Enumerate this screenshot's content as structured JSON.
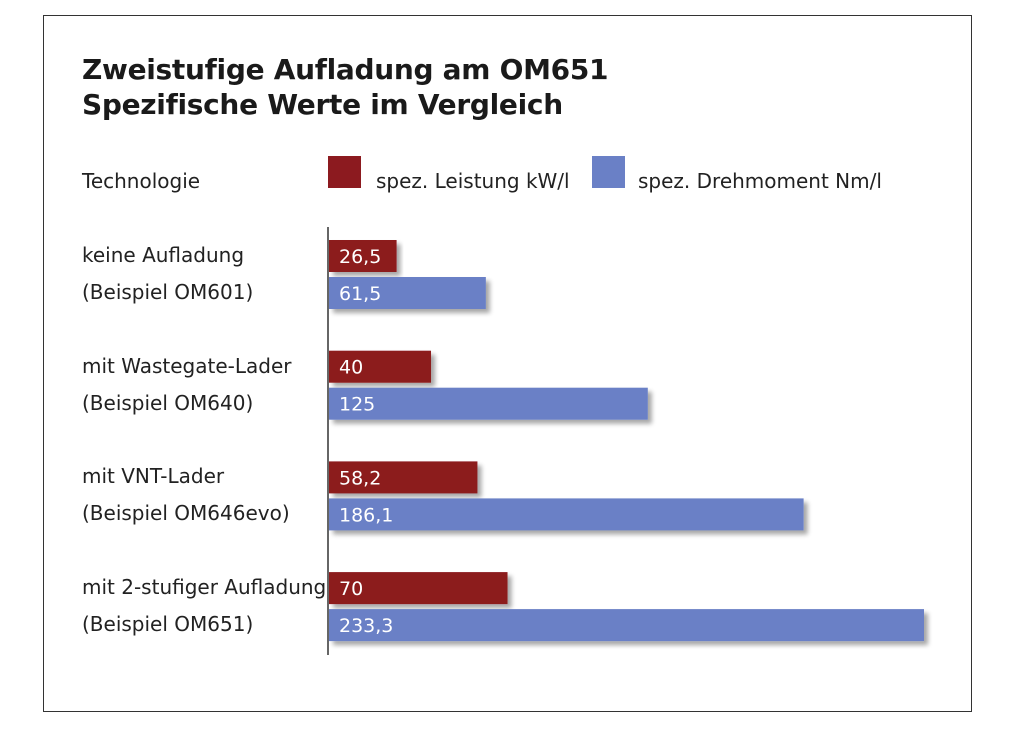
{
  "chart_data": {
    "type": "bar",
    "orientation": "horizontal",
    "title": "Zweistufige Aufladung am OM651",
    "subtitle": "Spezifische Werte im Vergleich",
    "category_header": "Technologie",
    "categories": [
      {
        "line1": "keine Aufladung",
        "line2": "(Beispiel OM601)"
      },
      {
        "line1": "mit Wastegate-Lader",
        "line2": "(Beispiel OM640)"
      },
      {
        "line1": "mit VNT-Lader",
        "line2": "(Beispiel OM646evo)"
      },
      {
        "line1": "mit 2-stufiger Aufladung",
        "line2": "(Beispiel OM651)"
      }
    ],
    "series": [
      {
        "name": "spez. Leistung kW/l",
        "color": "#8c1a1f",
        "values": [
          26.5,
          40,
          58.2,
          70
        ],
        "labels": [
          "26,5",
          "40",
          "58,2",
          "70"
        ]
      },
      {
        "name": "spez. Drehmoment Nm/l",
        "color": "#6a80c6",
        "values": [
          61.5,
          125,
          186.1,
          233.3
        ],
        "labels": [
          "61,5",
          "125",
          "186,1",
          "233,3"
        ]
      }
    ],
    "xlim": [
      0,
      233.3
    ],
    "legend": "top",
    "grid": false
  }
}
